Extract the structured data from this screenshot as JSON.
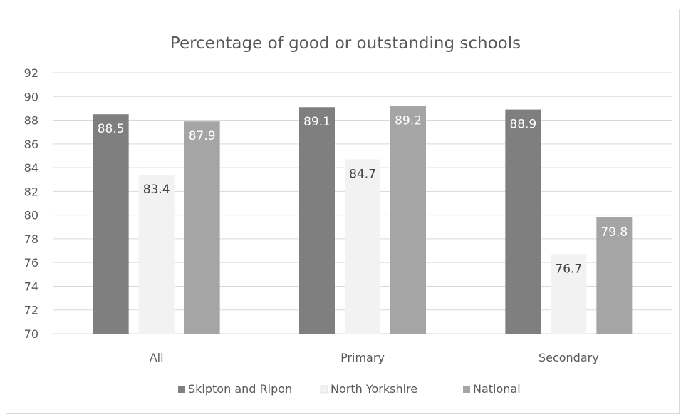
{
  "chart_data": {
    "type": "bar",
    "title": "Percentage of good or outstanding schools",
    "categories": [
      "All",
      "Primary",
      "Secondary"
    ],
    "series": [
      {
        "name": "Skipton and Ripon",
        "values": [
          88.5,
          89.1,
          88.9
        ],
        "color": "#7f7f7f",
        "label_color": "#ffffff"
      },
      {
        "name": "North Yorkshire",
        "values": [
          83.4,
          84.7,
          76.7
        ],
        "color": "#f2f2f2",
        "label_color": "#404040"
      },
      {
        "name": "National",
        "values": [
          87.9,
          89.2,
          79.8
        ],
        "color": "#a5a5a5",
        "label_color": "#ffffff"
      }
    ],
    "data_labels": [
      [
        "88.5",
        "89.1",
        "88.9"
      ],
      [
        "83.4",
        "84.7",
        "76.7"
      ],
      [
        "87.9",
        "89.2",
        "79.8"
      ]
    ],
    "ylim": [
      70,
      92
    ],
    "y_ticks": [
      70,
      72,
      74,
      76,
      78,
      80,
      82,
      84,
      86,
      88,
      90,
      92
    ],
    "y_tick_labels": [
      "70",
      "72",
      "74",
      "76",
      "78",
      "80",
      "82",
      "84",
      "86",
      "88",
      "90",
      "92"
    ],
    "grid": true,
    "legend_position": "bottom"
  }
}
